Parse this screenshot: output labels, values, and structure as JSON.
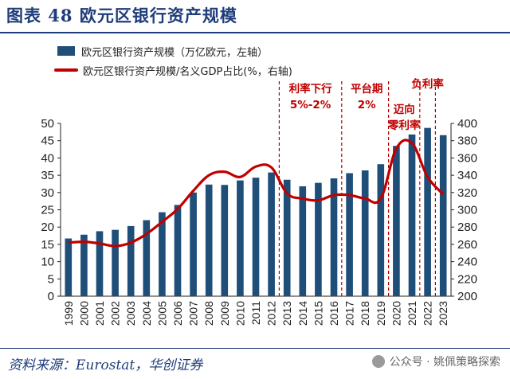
{
  "title": "图表 48  欧元区银行资产规模",
  "legend": {
    "bar_label": "欧元区银行资产规模（万亿欧元，左轴）",
    "line_label": "欧元区银行资产规模/名义GDP占比(%，右轴)"
  },
  "source": "资料来源：Eurostat，华创证券",
  "watermark": "公众号 · 姚佩策略探索",
  "colors": {
    "bar": "#1f4e79",
    "line": "#c00000",
    "annotation": "#c00000",
    "title": "#1f3d7a"
  },
  "chart_data": {
    "type": "bar+line",
    "categories": [
      "1999",
      "2000",
      "2001",
      "2002",
      "2003",
      "2004",
      "2005",
      "2006",
      "2007",
      "2008",
      "2009",
      "2010",
      "2011",
      "2012",
      "2013",
      "2014",
      "2015",
      "2016",
      "2017",
      "2018",
      "2019",
      "2020",
      "2021",
      "2022",
      "2023"
    ],
    "series": [
      {
        "name": "欧元区银行资产规模（万亿欧元，左轴）",
        "type": "bar",
        "axis": "left",
        "values": [
          16.7,
          17.8,
          18.8,
          19.2,
          20.3,
          22.0,
          24.3,
          26.4,
          30.0,
          32.3,
          32.2,
          33.5,
          34.3,
          35.8,
          33.7,
          31.8,
          32.8,
          34.1,
          35.6,
          36.4,
          38.2,
          43.5,
          46.8,
          48.7,
          46.6
        ]
      },
      {
        "name": "欧元区银行资产规模/名义GDP占比(%，右轴)",
        "type": "line",
        "axis": "right",
        "values": [
          262,
          263,
          261,
          258,
          262,
          272,
          286,
          301,
          322,
          340,
          344,
          338,
          350,
          349,
          319,
          313,
          311,
          317,
          317,
          313,
          313,
          371,
          377,
          338,
          318
        ]
      }
    ],
    "y_left": {
      "min": 0,
      "max": 50,
      "ticks": [
        0,
        5,
        10,
        15,
        20,
        25,
        30,
        35,
        40,
        45,
        50
      ]
    },
    "y_right": {
      "min": 200,
      "max": 400,
      "ticks": [
        200,
        220,
        240,
        260,
        280,
        300,
        320,
        340,
        360,
        380,
        400
      ]
    },
    "annotations": [
      {
        "lines": [
          "利率下行",
          "5%-2%"
        ],
        "start_year": "2012",
        "end_year": "2019"
      },
      {
        "lines": [
          "平台期",
          "2%"
        ],
        "start_year": "2016",
        "end_year": "2019"
      },
      {
        "lines": [
          "迈向",
          "零利率"
        ],
        "start_year": "2019",
        "end_year": "2021"
      },
      {
        "lines": [
          "负利率"
        ],
        "start_year": "2021",
        "end_year": "2022"
      }
    ]
  }
}
